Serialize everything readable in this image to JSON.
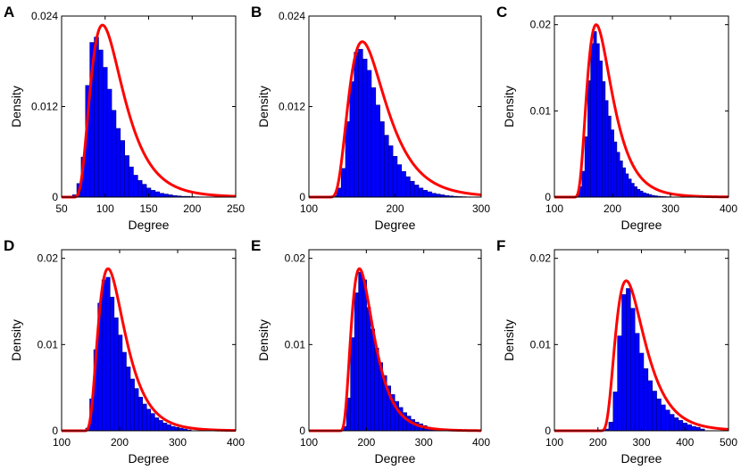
{
  "colors": {
    "bars": "#0000ff",
    "bar_edge": "#000080",
    "curve": "#ff0000"
  },
  "chart_data": [
    {
      "type": "bar",
      "panel": "A",
      "xlabel": "Degree",
      "ylabel": "Density",
      "xlim": [
        50,
        250
      ],
      "ylim": [
        0,
        0.024
      ],
      "xticks": [
        50,
        100,
        150,
        200,
        250
      ],
      "yticks": [
        0,
        0.012,
        0.024
      ],
      "xtick_labels": [
        "50",
        "100",
        "150",
        "200",
        "250"
      ],
      "ytick_labels": [
        "0",
        "0.012",
        "0.024"
      ],
      "bins": [
        60,
        65,
        70,
        75,
        80,
        85,
        90,
        95,
        100,
        105,
        110,
        115,
        120,
        125,
        130,
        135,
        140,
        145,
        150,
        155,
        160,
        165,
        170,
        175,
        180,
        185,
        190,
        195,
        200,
        205,
        210,
        215,
        220
      ],
      "values": [
        0.0,
        0.0003,
        0.0018,
        0.0053,
        0.0148,
        0.0205,
        0.0212,
        0.0195,
        0.0172,
        0.0143,
        0.0115,
        0.0091,
        0.0075,
        0.0055,
        0.004,
        0.0029,
        0.0022,
        0.0017,
        0.0012,
        0.0009,
        0.0007,
        0.0005,
        0.0004,
        0.0003,
        0.0002,
        0.00015,
        0.0001,
        0.0001,
        6e-05,
        4e-05,
        3e-05,
        2e-05,
        1e-05
      ],
      "fit": {
        "mode": 97,
        "peak": 0.0228,
        "onset": 60
      }
    },
    {
      "type": "bar",
      "panel": "B",
      "xlabel": "Degree",
      "ylabel": "Density",
      "xlim": [
        100,
        300
      ],
      "ylim": [
        0,
        0.024
      ],
      "xticks": [
        100,
        200,
        300
      ],
      "yticks": [
        0,
        0.012,
        0.024
      ],
      "xtick_labels": [
        "100",
        "200",
        "300"
      ],
      "ytick_labels": [
        "0",
        "0.012",
        "0.024"
      ],
      "bins": [
        110,
        115,
        120,
        125,
        130,
        135,
        140,
        145,
        150,
        155,
        160,
        165,
        170,
        175,
        180,
        185,
        190,
        195,
        200,
        205,
        210,
        215,
        220,
        225,
        230,
        235,
        240,
        245,
        250,
        255,
        260,
        265,
        270,
        275,
        280,
        285,
        290
      ],
      "values": [
        0,
        0,
        0,
        0.0001,
        0.0002,
        0.0012,
        0.0038,
        0.01,
        0.0153,
        0.0192,
        0.0196,
        0.0183,
        0.0168,
        0.0145,
        0.0122,
        0.01,
        0.0082,
        0.0068,
        0.0054,
        0.0043,
        0.0034,
        0.0027,
        0.0021,
        0.0016,
        0.0012,
        0.0009,
        0.0007,
        0.0005,
        0.0004,
        0.0003,
        0.0002,
        0.00015,
        0.0001,
        7e-05,
        5e-05,
        3e-05,
        2e-05
      ],
      "fit": {
        "mode": 162,
        "peak": 0.0206,
        "onset": 120
      }
    },
    {
      "type": "bar",
      "panel": "C",
      "xlabel": "Degree",
      "ylabel": "Density",
      "xlim": [
        100,
        400
      ],
      "ylim": [
        0,
        0.021
      ],
      "xticks": [
        100,
        200,
        300,
        400
      ],
      "yticks": [
        0,
        0.01,
        0.02
      ],
      "xtick_labels": [
        "100",
        "200",
        "300",
        "400"
      ],
      "ytick_labels": [
        "0",
        "0.01",
        "0.02"
      ],
      "bins": [
        135,
        140,
        145,
        150,
        155,
        160,
        165,
        170,
        175,
        180,
        185,
        190,
        195,
        200,
        205,
        210,
        215,
        220,
        225,
        230,
        235,
        240,
        245,
        250,
        255,
        260,
        265,
        270,
        275,
        280,
        285,
        290,
        295,
        300,
        305,
        310
      ],
      "values": [
        0.0001,
        0.0003,
        0.0012,
        0.003,
        0.007,
        0.0135,
        0.0178,
        0.0192,
        0.0178,
        0.0158,
        0.0134,
        0.0112,
        0.0094,
        0.0078,
        0.0064,
        0.0052,
        0.0042,
        0.0034,
        0.0027,
        0.0021,
        0.0016,
        0.0012,
        0.0009,
        0.0007,
        0.0005,
        0.0004,
        0.0003,
        0.0002,
        0.00015,
        0.0001,
        8e-05,
        6e-05,
        4e-05,
        3e-05,
        2e-05,
        1e-05
      ],
      "fit": {
        "mode": 172,
        "peak": 0.02,
        "onset": 130
      }
    },
    {
      "type": "bar",
      "panel": "D",
      "xlabel": "Degree",
      "ylabel": "Density",
      "xlim": [
        100,
        400
      ],
      "ylim": [
        0,
        0.021
      ],
      "xticks": [
        100,
        200,
        300,
        400
      ],
      "yticks": [
        0,
        0.01,
        0.02
      ],
      "xtick_labels": [
        "100",
        "200",
        "300",
        "400"
      ],
      "ytick_labels": [
        "0",
        "0.01",
        "0.02"
      ],
      "bins": [
        145,
        152,
        159,
        166,
        173,
        180,
        187,
        194,
        201,
        208,
        215,
        222,
        229,
        236,
        243,
        250,
        257,
        264,
        271,
        278,
        285,
        292,
        299,
        306,
        313,
        320
      ],
      "values": [
        0.0003,
        0.0037,
        0.0094,
        0.0148,
        0.0175,
        0.0178,
        0.0155,
        0.0131,
        0.0111,
        0.0091,
        0.0074,
        0.006,
        0.0049,
        0.0039,
        0.0031,
        0.0025,
        0.002,
        0.0015,
        0.0012,
        0.0009,
        0.0007,
        0.0005,
        0.0004,
        0.0003,
        0.0002,
        0.0001
      ],
      "fit": {
        "mode": 180,
        "peak": 0.0188,
        "onset": 135
      }
    },
    {
      "type": "bar",
      "panel": "E",
      "xlabel": "Degree",
      "ylabel": "Density",
      "xlim": [
        100,
        400
      ],
      "ylim": [
        0,
        0.021
      ],
      "xticks": [
        100,
        200,
        300,
        400
      ],
      "yticks": [
        0,
        0.01,
        0.02
      ],
      "xtick_labels": [
        "100",
        "200",
        "300",
        "400"
      ],
      "ytick_labels": [
        "0",
        "0.01",
        "0.02"
      ],
      "bins": [
        155,
        162,
        169,
        176,
        183,
        190,
        197,
        204,
        211,
        218,
        225,
        232,
        239,
        246,
        253,
        260,
        267,
        274,
        281,
        288,
        295,
        302,
        309,
        316,
        323,
        330
      ],
      "values": [
        0.0001,
        0.0005,
        0.0038,
        0.0108,
        0.016,
        0.0184,
        0.0175,
        0.0143,
        0.0118,
        0.0096,
        0.0079,
        0.0064,
        0.0052,
        0.0042,
        0.0034,
        0.0027,
        0.0021,
        0.0017,
        0.0013,
        0.001,
        0.0008,
        0.0006,
        0.0004,
        0.0003,
        0.0002,
        0.0001
      ],
      "fit": {
        "mode": 188,
        "peak": 0.0188,
        "onset": 150
      }
    },
    {
      "type": "bar",
      "panel": "F",
      "xlabel": "Degree",
      "ylabel": "Density",
      "xlim": [
        100,
        500
      ],
      "ylim": [
        0,
        0.021
      ],
      "xticks": [
        100,
        200,
        300,
        400,
        500
      ],
      "yticks": [
        0,
        0.01,
        0.02
      ],
      "xtick_labels": [
        "100",
        "200",
        "300",
        "400",
        "500"
      ],
      "ytick_labels": [
        "0",
        "0.01",
        "0.02"
      ],
      "bins": [
        210,
        220,
        230,
        240,
        250,
        260,
        270,
        280,
        290,
        300,
        310,
        320,
        330,
        340,
        350,
        360,
        370,
        380,
        390,
        400,
        410,
        420,
        430,
        440
      ],
      "values": [
        0.0001,
        0.0002,
        0.001,
        0.0045,
        0.011,
        0.0158,
        0.0165,
        0.0142,
        0.0113,
        0.009,
        0.0072,
        0.0058,
        0.0046,
        0.0037,
        0.003,
        0.0024,
        0.0019,
        0.0015,
        0.0012,
        0.0009,
        0.0007,
        0.0005,
        0.0004,
        0.0002
      ],
      "fit": {
        "mode": 265,
        "peak": 0.0174,
        "onset": 200
      }
    }
  ]
}
